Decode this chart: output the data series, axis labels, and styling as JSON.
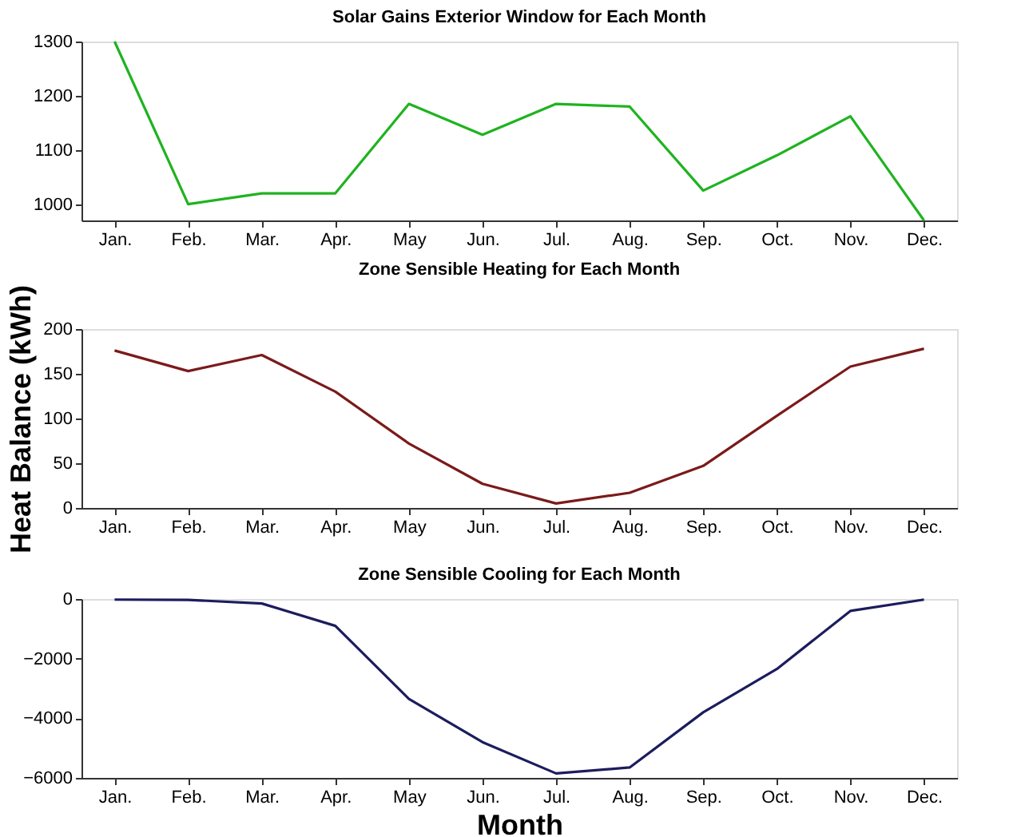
{
  "chart_data": [
    {
      "type": "line",
      "title": "Solar Gains Exterior Window for Each Month",
      "categories": [
        "Jan.",
        "Feb.",
        "Mar.",
        "Apr.",
        "May",
        "Jun.",
        "Jul.",
        "Aug.",
        "Sep.",
        "Oct.",
        "Nov.",
        "Dec."
      ],
      "series": [
        {
          "color": "#1fb31f",
          "values": [
            1300,
            1000,
            1020,
            1020,
            1185,
            1128,
            1185,
            1180,
            1025,
            1090,
            1162,
            970
          ]
        }
      ],
      "ylim": [
        970,
        1300
      ],
      "yticks": [
        1000,
        1100,
        1200,
        1300
      ],
      "grid": false
    },
    {
      "type": "line",
      "title": "Zone Sensible Heating for Each Month",
      "ylabel": "Heat Balance (kWh)",
      "categories": [
        "Jan.",
        "Feb.",
        "Mar.",
        "Apr.",
        "May",
        "Jun.",
        "Jul.",
        "Aug.",
        "Sep.",
        "Oct.",
        "Nov.",
        "Dec."
      ],
      "series": [
        {
          "color": "#7b1a1a",
          "values": [
            176,
            153,
            171,
            130,
            72,
            27,
            5,
            17,
            47,
            103,
            158,
            178
          ]
        }
      ],
      "ylim": [
        0,
        200
      ],
      "yticks": [
        0,
        50,
        100,
        150,
        200
      ],
      "grid": false
    },
    {
      "type": "line",
      "title": "Zone Sensible Cooling for Each Month",
      "xlabel": "Month",
      "categories": [
        "Jan.",
        "Feb.",
        "Mar.",
        "Apr.",
        "May",
        "Jun.",
        "Jul.",
        "Aug.",
        "Sep.",
        "Oct.",
        "Nov.",
        "Dec."
      ],
      "series": [
        {
          "color": "#1c1c5e",
          "values": [
            -20,
            -30,
            -150,
            -900,
            -3350,
            -4800,
            -5850,
            -5650,
            -3800,
            -2350,
            -400,
            -20
          ]
        }
      ],
      "ylim": [
        -6000,
        0
      ],
      "yticks": [
        -6000,
        -4000,
        -2000,
        0
      ],
      "grid": false
    }
  ]
}
